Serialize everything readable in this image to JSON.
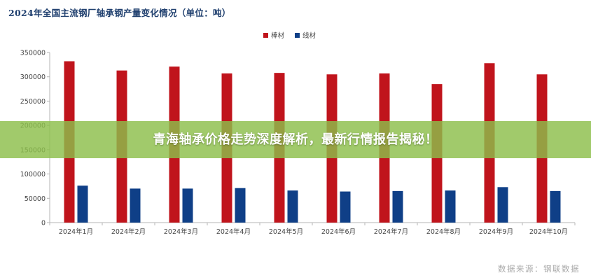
{
  "chart_data": {
    "type": "bar",
    "title": "2024年全国主流钢厂轴承钢产量变化情况（单位：吨）",
    "categories": [
      "2024年1月",
      "2024年2月",
      "2024年3月",
      "2024年4月",
      "2024年5月",
      "2024年6月",
      "2024年7月",
      "2024年8月",
      "2024年9月",
      "2024年10月"
    ],
    "series": [
      {
        "name": "棒材",
        "color": "#c0141c",
        "values": [
          332000,
          313000,
          321000,
          307000,
          308000,
          305000,
          307000,
          285000,
          328000,
          305000
        ]
      },
      {
        "name": "线材",
        "color": "#0f3f87",
        "values": [
          76000,
          70000,
          70000,
          71000,
          66000,
          64000,
          65000,
          66000,
          73000,
          65000
        ]
      }
    ],
    "ylim": [
      0,
      350000
    ],
    "yticks": [
      0,
      50000,
      100000,
      150000,
      200000,
      250000,
      300000,
      350000
    ],
    "legend_position": "top-right",
    "grid": false
  },
  "banner": {
    "text": "青海轴承价格走势深度解析，最新行情报告揭秘！"
  },
  "source_note": "数据来源：钢联数据"
}
